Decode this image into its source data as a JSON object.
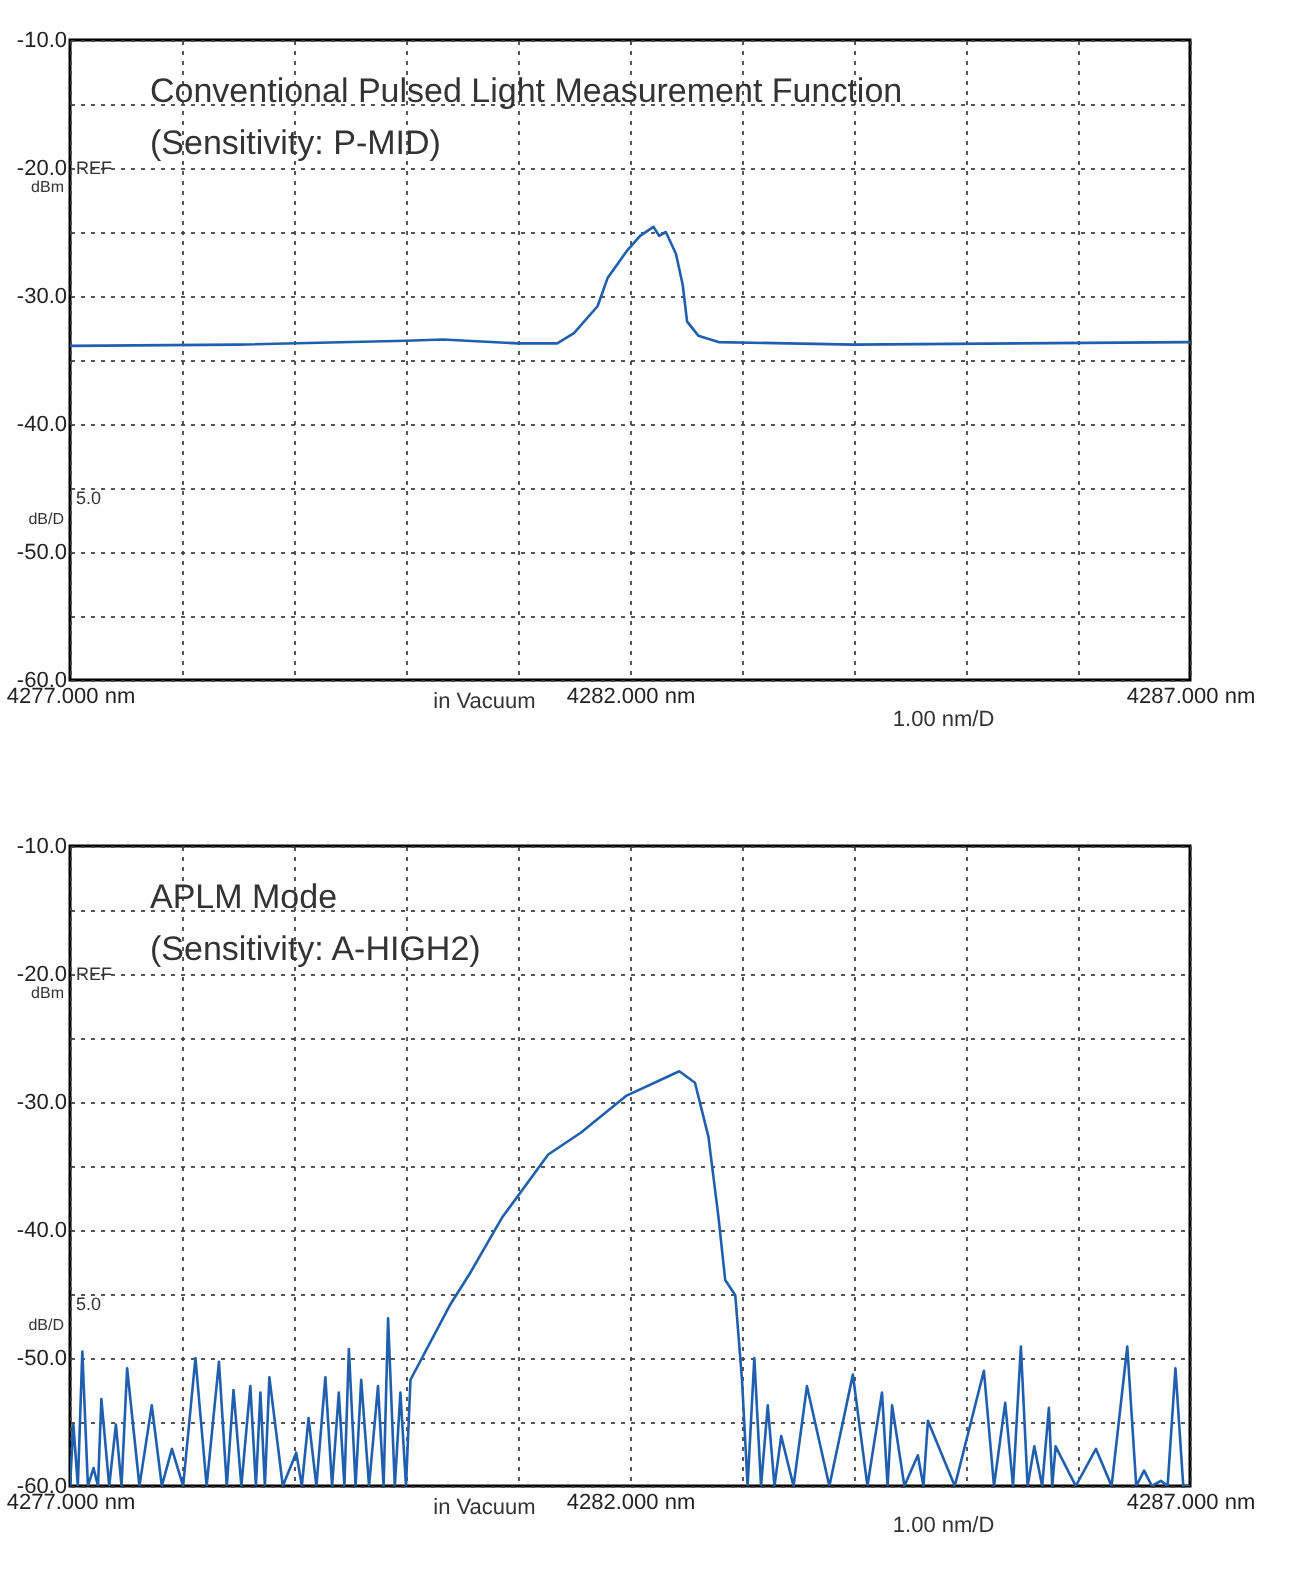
{
  "chart_data": [
    {
      "type": "line",
      "title": "Conventional Pulsed Light Measurement Function",
      "subtitle": "(Sensitivity: P-MID)",
      "x": [
        4277.0,
        4278.5,
        4280.0,
        4280.33,
        4281.0,
        4281.35,
        4281.5,
        4281.71,
        4281.8,
        4281.97,
        4282.09,
        4282.21,
        4282.26,
        4282.32,
        4282.41,
        4282.47,
        4282.51,
        4282.61,
        4282.79,
        4284.0,
        4287.0
      ],
      "series": [
        {
          "color": "#1f5fae",
          "values": [
            -33.9,
            -33.8,
            -33.5,
            -33.4,
            -33.7,
            -33.7,
            -32.9,
            -30.8,
            -28.6,
            -26.5,
            -25.3,
            -24.6,
            -25.3,
            -25.0,
            -26.7,
            -29.1,
            -32.0,
            -33.1,
            -33.6,
            -33.8,
            -33.6
          ]
        }
      ],
      "xlim": [
        4277,
        4287
      ],
      "ylim": [
        -60,
        -10
      ],
      "xticks": [
        {
          "value": 4277,
          "label": "4277.000 nm"
        },
        {
          "value": 4278,
          "label": null
        },
        {
          "value": 4279,
          "label": null
        },
        {
          "value": 4280,
          "label": null
        },
        {
          "value": 4281,
          "label": null
        },
        {
          "value": 4282,
          "label": "4282.000 nm"
        },
        {
          "value": 4283,
          "label": null
        },
        {
          "value": 4284,
          "label": null
        },
        {
          "value": 4285,
          "label": null
        },
        {
          "value": 4286,
          "label": null
        },
        {
          "value": 4287,
          "label": "4287.000 nm"
        }
      ],
      "yticks": [
        {
          "value": -60,
          "label": "-60.0"
        },
        {
          "value": -55,
          "label": null
        },
        {
          "value": -50,
          "label": "-50.0"
        },
        {
          "value": -45,
          "label": null
        },
        {
          "value": -40,
          "label": "-40.0"
        },
        {
          "value": -35,
          "label": null
        },
        {
          "value": -30,
          "label": "-30.0"
        },
        {
          "value": -25,
          "label": null
        },
        {
          "value": -20,
          "label": "-20.0"
        },
        {
          "value": -15,
          "label": null
        },
        {
          "value": -10,
          "label": "-10.0"
        }
      ],
      "grid": true,
      "annotations": [
        "REF",
        "dBm",
        "5.0",
        "dB/D",
        "in Vacuum",
        "1.00 nm/D"
      ]
    },
    {
      "type": "line",
      "title": "APLM Mode",
      "subtitle": "(Sensitivity: A-HIGH2)",
      "x": [
        4277.0,
        4277.03,
        4277.07,
        4277.11,
        4277.16,
        4277.21,
        4277.25,
        4277.28,
        4277.35,
        4277.41,
        4277.46,
        4277.51,
        4277.62,
        4277.73,
        4277.82,
        4277.91,
        4278.01,
        4278.12,
        4278.22,
        4278.33,
        4278.4,
        4278.46,
        4278.53,
        4278.61,
        4278.66,
        4278.7,
        4278.74,
        4278.78,
        4278.9,
        4279.02,
        4279.07,
        4279.13,
        4279.2,
        4279.28,
        4279.34,
        4279.4,
        4279.45,
        4279.49,
        4279.55,
        4279.6,
        4279.67,
        4279.75,
        4279.8,
        4279.84,
        4279.9,
        4279.95,
        4280.0,
        4280.04,
        4280.39,
        4280.57,
        4280.86,
        4281.27,
        4281.56,
        4281.97,
        4282.44,
        4282.58,
        4282.7,
        4282.79,
        4282.85,
        4282.94,
        4283.0,
        4283.05,
        4283.11,
        4283.17,
        4283.23,
        4283.29,
        4283.35,
        4283.46,
        4283.58,
        4283.78,
        4283.99,
        4284.12,
        4284.25,
        4284.3,
        4284.34,
        4284.45,
        4284.57,
        4284.62,
        4284.66,
        4284.9,
        4285.16,
        4285.25,
        4285.35,
        4285.42,
        4285.49,
        4285.55,
        4285.61,
        4285.68,
        4285.74,
        4285.77,
        4285.8,
        4285.98,
        4286.16,
        4286.3,
        4286.44,
        4286.52,
        4286.59,
        4286.66,
        4286.74,
        4286.8,
        4286.87,
        4286.94,
        4287.0
      ],
      "series": [
        {
          "color": "#1f5fae",
          "values": [
            -60,
            -55.2,
            -60,
            -49.5,
            -60,
            -58.6,
            -60,
            -53.2,
            -60,
            -55.2,
            -60,
            -50.8,
            -60,
            -53.7,
            -60,
            -57.1,
            -60,
            -50.0,
            -60,
            -50.3,
            -60,
            -52.5,
            -60,
            -52.2,
            -60,
            -52.7,
            -60,
            -51.5,
            -60,
            -57.4,
            -60,
            -54.7,
            -60,
            -51.5,
            -60,
            -52.7,
            -60,
            -49.3,
            -60,
            -51.7,
            -60,
            -52.2,
            -60,
            -46.9,
            -60,
            -52.7,
            -60,
            -51.7,
            -45.9,
            -43.4,
            -39.0,
            -34.1,
            -32.4,
            -29.5,
            -27.6,
            -28.5,
            -32.7,
            -39.0,
            -43.9,
            -45.1,
            -51.7,
            -60,
            -50.0,
            -60,
            -53.7,
            -60,
            -56.1,
            -60,
            -52.2,
            -60,
            -51.3,
            -60,
            -52.7,
            -60,
            -53.7,
            -60,
            -57.6,
            -60,
            -54.9,
            -60,
            -51.0,
            -60,
            -53.5,
            -60,
            -49.1,
            -60,
            -56.9,
            -60,
            -53.9,
            -60,
            -56.9,
            -60,
            -57.1,
            -60,
            -49.1,
            -60,
            -58.8,
            -60,
            -59.6,
            -60,
            -50.8,
            -60,
            -60
          ]
        }
      ],
      "xlim": [
        4277,
        4287
      ],
      "ylim": [
        -60,
        -10
      ],
      "xticks": [
        {
          "value": 4277,
          "label": "4277.000 nm"
        },
        {
          "value": 4278,
          "label": null
        },
        {
          "value": 4279,
          "label": null
        },
        {
          "value": 4280,
          "label": null
        },
        {
          "value": 4281,
          "label": null
        },
        {
          "value": 4282,
          "label": "4282.000 nm"
        },
        {
          "value": 4283,
          "label": null
        },
        {
          "value": 4284,
          "label": null
        },
        {
          "value": 4285,
          "label": null
        },
        {
          "value": 4286,
          "label": null
        },
        {
          "value": 4287,
          "label": "4287.000 nm"
        }
      ],
      "yticks": [
        {
          "value": -60,
          "label": "-60.0"
        },
        {
          "value": -55,
          "label": null
        },
        {
          "value": -50,
          "label": "-50.0"
        },
        {
          "value": -45,
          "label": null
        },
        {
          "value": -40,
          "label": "-40.0"
        },
        {
          "value": -35,
          "label": null
        },
        {
          "value": -30,
          "label": "-30.0"
        },
        {
          "value": -25,
          "label": null
        },
        {
          "value": -20,
          "label": "-20.0"
        },
        {
          "value": -15,
          "label": null
        },
        {
          "value": -10,
          "label": "-10.0"
        }
      ],
      "grid": true,
      "annotations": [
        "REF",
        "dBm",
        "5.0",
        "dB/D",
        "in Vacuum",
        "1.00 nm/D"
      ]
    }
  ]
}
